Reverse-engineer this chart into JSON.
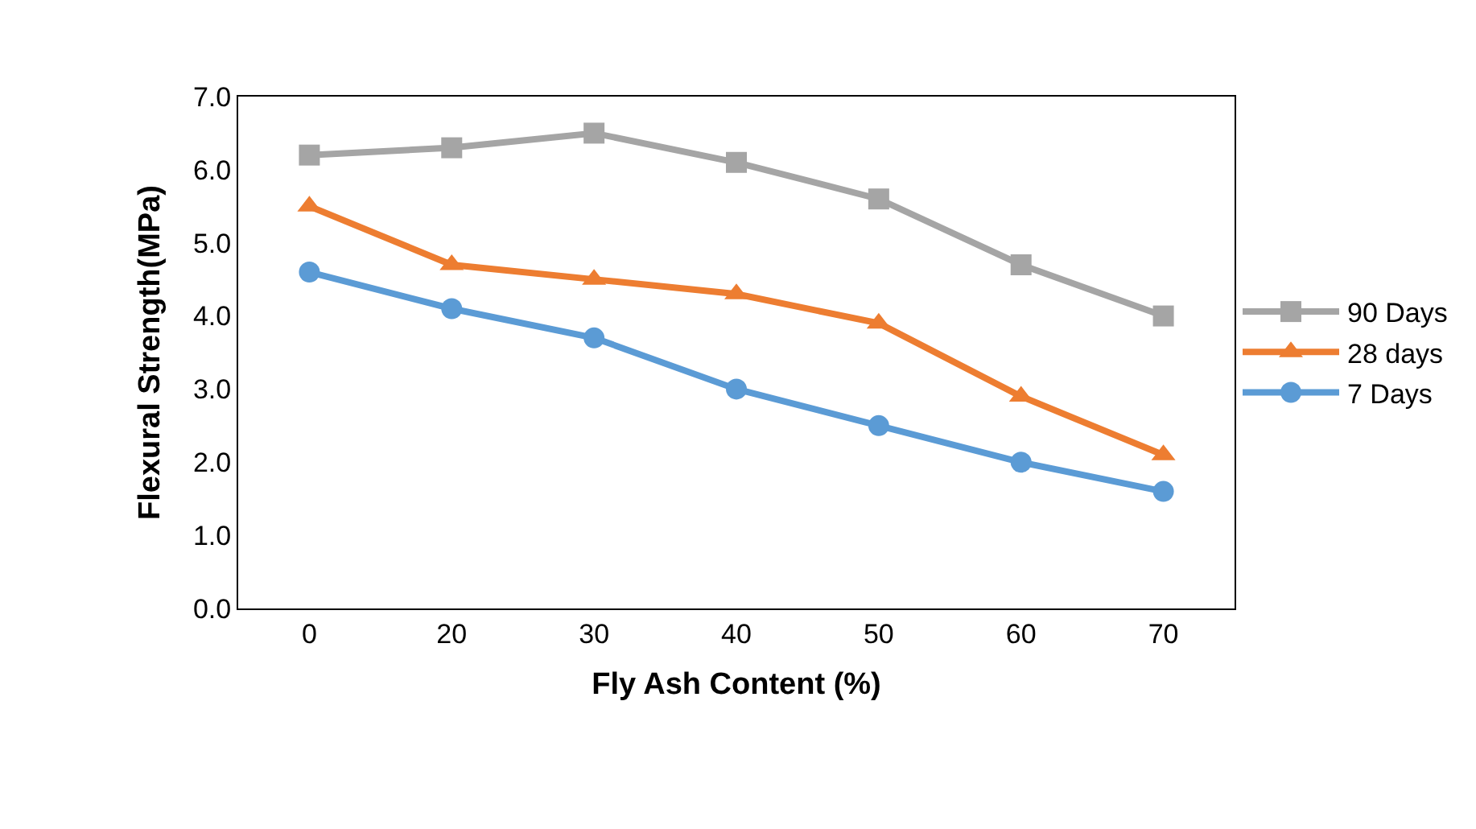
{
  "chart_data": {
    "type": "line",
    "xlabel": "Fly Ash Content (%)",
    "ylabel": "Flexural Strength(MPa)",
    "categories": [
      "0",
      "20",
      "30",
      "40",
      "50",
      "60",
      "70"
    ],
    "series": [
      {
        "name": "90 Days",
        "color": "#a5a5a5",
        "marker": "square",
        "values": [
          6.2,
          6.3,
          6.5,
          6.1,
          5.6,
          4.7,
          4.0
        ]
      },
      {
        "name": "28 days",
        "color": "#ed7d31",
        "marker": "triangle",
        "values": [
          5.5,
          4.7,
          4.5,
          4.3,
          3.9,
          2.9,
          2.1
        ]
      },
      {
        "name": "7 Days",
        "color": "#5b9bd5",
        "marker": "circle",
        "values": [
          4.6,
          4.1,
          3.7,
          3.0,
          2.5,
          2.0,
          1.6
        ]
      }
    ],
    "ylim": [
      0,
      7
    ],
    "yticks": [
      {
        "value": 0,
        "label": "0.0"
      },
      {
        "value": 1,
        "label": "1.0"
      },
      {
        "value": 2,
        "label": "2.0"
      },
      {
        "value": 3,
        "label": "3.0"
      },
      {
        "value": 4,
        "label": "4.0"
      },
      {
        "value": 5,
        "label": "5.0"
      },
      {
        "value": 6,
        "label": "6.0"
      },
      {
        "value": 7,
        "label": "7.0"
      }
    ],
    "legend": "right",
    "line_style": "solid"
  }
}
